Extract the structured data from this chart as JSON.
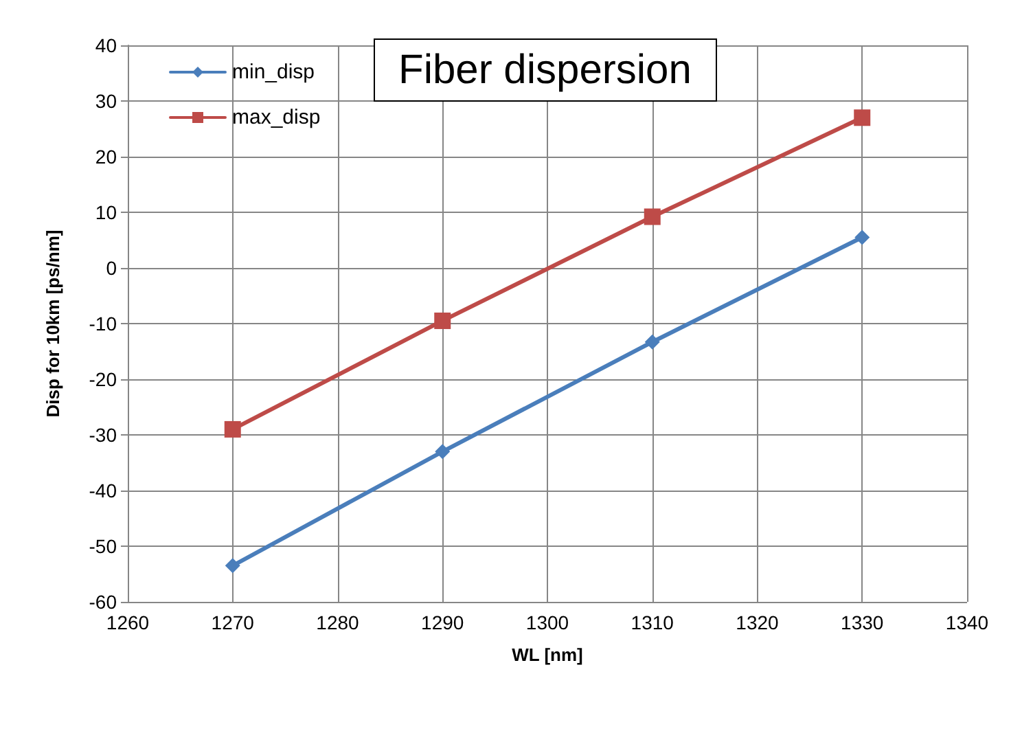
{
  "chart_data": {
    "type": "line",
    "title": "Fiber dispersion",
    "xlabel": "WL [nm]",
    "ylabel": "Disp for 10km [ps/nm]",
    "x": [
      1270,
      1290,
      1310,
      1330
    ],
    "series": [
      {
        "name": "min_disp",
        "color": "#4a7ebb",
        "marker": "diamond",
        "values": [
          -53.5,
          -33,
          -13.3,
          5.5
        ]
      },
      {
        "name": "max_disp",
        "color": "#be4b48",
        "marker": "square",
        "values": [
          -29,
          -9.5,
          9.2,
          27
        ]
      }
    ],
    "xlim": [
      1260,
      1340
    ],
    "xticks": [
      1260,
      1270,
      1280,
      1290,
      1300,
      1310,
      1320,
      1330,
      1340
    ],
    "ylim": [
      -60,
      40
    ],
    "yticks": [
      -60,
      -50,
      -40,
      -30,
      -20,
      -10,
      0,
      10,
      20,
      30,
      40
    ],
    "grid": true,
    "legend": "top left",
    "line_style": "solid"
  }
}
